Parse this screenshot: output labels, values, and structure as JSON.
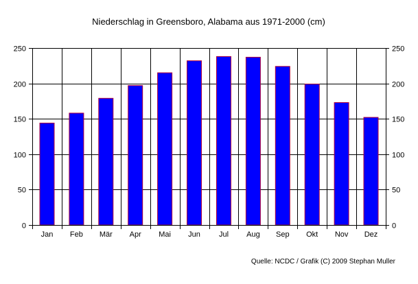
{
  "chart_data": {
    "type": "bar",
    "title": "Niederschlag in Greensboro, Alabama aus 1971-2000 (cm)",
    "categories": [
      "Jan",
      "Feb",
      "Mär",
      "Apr",
      "Mai",
      "Jun",
      "Jul",
      "Aug",
      "Sep",
      "Okt",
      "Nov",
      "Dez"
    ],
    "values": [
      144,
      158,
      179,
      197,
      215,
      232,
      238,
      237,
      224,
      199,
      173,
      152
    ],
    "ylim": [
      0,
      250
    ],
    "yticks": [
      0,
      50,
      100,
      150,
      200,
      250
    ],
    "grid": true,
    "source": "Quelle: NCDC / Grafik (C) 2009 Stephan Muller",
    "colors": {
      "bar_fill": "#0000ff",
      "bar_edge": "#b0003a",
      "grid": "#000000"
    }
  }
}
